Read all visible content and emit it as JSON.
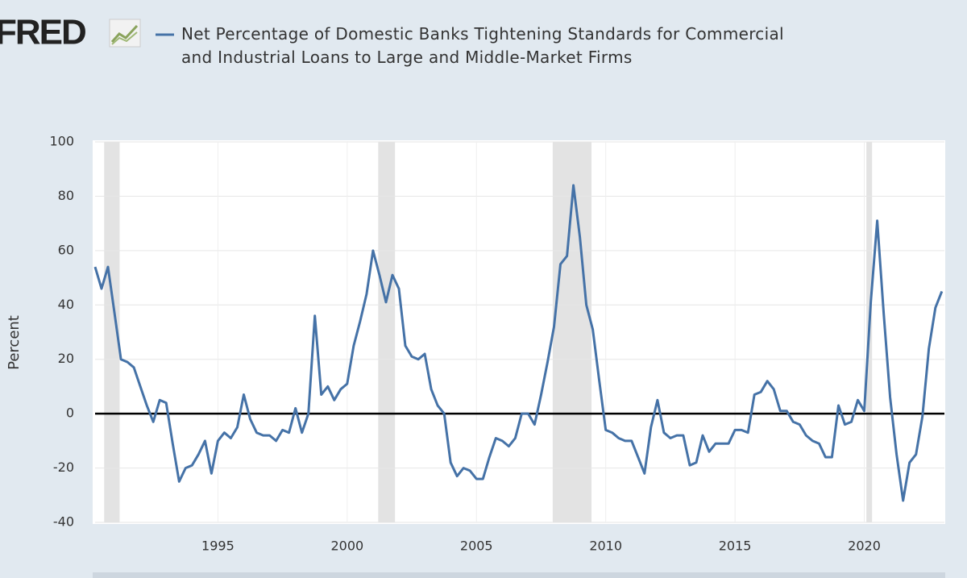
{
  "logo": "FRED",
  "chart_data": {
    "type": "line",
    "y_label": "Percent",
    "xlim": [
      1990.25,
      2023.1
    ],
    "xticks": [
      1995,
      2000,
      2005,
      2010,
      2015,
      2020
    ],
    "ylim": [
      -40,
      100
    ],
    "yticks": [
      100,
      80,
      60,
      40,
      20,
      0,
      -20,
      -40
    ],
    "grid": true,
    "zero_line": 0,
    "recessions": [
      [
        1990.6,
        1991.2
      ],
      [
        2001.2,
        2001.85
      ],
      [
        2007.95,
        2009.45
      ],
      [
        2020.08,
        2020.3
      ]
    ],
    "x": [
      1990.25,
      1990.5,
      1990.75,
      1991,
      1991.25,
      1991.5,
      1991.75,
      1992,
      1992.25,
      1992.5,
      1992.75,
      1993,
      1993.25,
      1993.5,
      1993.75,
      1994,
      1994.25,
      1994.5,
      1994.75,
      1995,
      1995.25,
      1995.5,
      1995.75,
      1996,
      1996.25,
      1996.5,
      1996.75,
      1997,
      1997.25,
      1997.5,
      1997.75,
      1998,
      1998.25,
      1998.5,
      1998.75,
      1999,
      1999.25,
      1999.5,
      1999.75,
      2000,
      2000.25,
      2000.5,
      2000.75,
      2001,
      2001.25,
      2001.5,
      2001.75,
      2002,
      2002.25,
      2002.5,
      2002.75,
      2003,
      2003.25,
      2003.5,
      2003.75,
      2004,
      2004.25,
      2004.5,
      2004.75,
      2005,
      2005.25,
      2005.5,
      2005.75,
      2006,
      2006.25,
      2006.5,
      2006.75,
      2007,
      2007.25,
      2007.5,
      2007.75,
      2008,
      2008.25,
      2008.5,
      2008.75,
      2009,
      2009.25,
      2009.5,
      2009.75,
      2010,
      2010.25,
      2010.5,
      2010.75,
      2011,
      2011.25,
      2011.5,
      2011.75,
      2012,
      2012.25,
      2012.5,
      2012.75,
      2013,
      2013.25,
      2013.5,
      2013.75,
      2014,
      2014.25,
      2014.5,
      2014.75,
      2015,
      2015.25,
      2015.5,
      2015.75,
      2016,
      2016.25,
      2016.5,
      2016.75,
      2017,
      2017.25,
      2017.5,
      2017.75,
      2018,
      2018.25,
      2018.5,
      2018.75,
      2019,
      2019.25,
      2019.5,
      2019.75,
      2020,
      2020.25,
      2020.5,
      2020.75,
      2021,
      2021.25,
      2021.5,
      2021.75,
      2022,
      2022.25,
      2022.5,
      2022.75,
      2023
    ],
    "series": [
      {
        "name": "Net Percentage of Domestic Banks Tightening Standards for Commercial and Industrial Loans to Large and Middle-Market Firms",
        "color": "#4572a7",
        "values": [
          54,
          46,
          54,
          37,
          20,
          19,
          17,
          10,
          3,
          -3,
          5,
          4,
          -11,
          -25,
          -20,
          -19,
          -15,
          -10,
          -22,
          -10,
          -7,
          -9,
          -5,
          7,
          -2,
          -7,
          -8,
          -8,
          -10,
          -6,
          -7,
          2,
          -7,
          0,
          36,
          7,
          10,
          5,
          9,
          11,
          25,
          34,
          44,
          60,
          51,
          41,
          51,
          46,
          25,
          21,
          20,
          22,
          9,
          3,
          0,
          -18,
          -23,
          -20,
          -21,
          -24,
          -24,
          -16,
          -9,
          -10,
          -12,
          -9,
          0,
          0,
          -4,
          7,
          19,
          32,
          55,
          58,
          84,
          65,
          40,
          31,
          12,
          -6,
          -7,
          -9,
          -10,
          -10,
          -16,
          -22,
          -5,
          5,
          -7,
          -9,
          -8,
          -8,
          -19,
          -18,
          -8,
          -14,
          -11,
          -11,
          -11,
          -6,
          -6,
          -7,
          7,
          8,
          12,
          9,
          1,
          1,
          -3,
          -4,
          -8,
          -10,
          -11,
          -16,
          -16,
          3,
          -4,
          -3,
          5,
          1,
          41,
          71,
          37,
          6,
          -15,
          -32,
          -18,
          -15,
          -1,
          24,
          39,
          45
        ]
      }
    ]
  }
}
